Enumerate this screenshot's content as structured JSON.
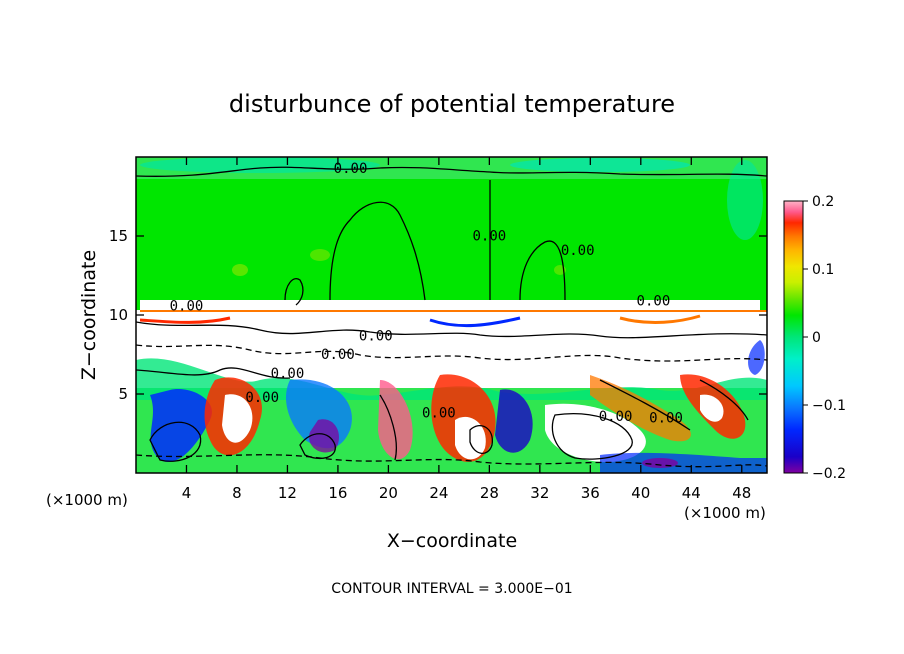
{
  "chart_data": {
    "type": "heatmap",
    "title": "disturbunce of potential temperature",
    "xlabel": "X−coordinate",
    "ylabel": "Z−coordinate",
    "x_unit": "(×1000 m)",
    "x_unit_right": "(×1000 m)",
    "xlim": [
      0,
      50
    ],
    "ylim": [
      0,
      20
    ],
    "xticks": [
      4,
      8,
      12,
      16,
      20,
      24,
      28,
      32,
      36,
      40,
      44,
      48
    ],
    "yticks": [
      5,
      10,
      15
    ],
    "colorbar": {
      "range": [
        -0.2,
        0.2
      ],
      "tick_values": [
        0.2,
        0.1,
        0,
        -0.1,
        -0.2
      ],
      "tick_labels": [
        "0.2",
        "0.1",
        "0",
        "−0.1",
        "−0.2"
      ],
      "colors": [
        "#8000a0",
        "#1a00c8",
        "#0028ff",
        "#0a78ff",
        "#00c8ff",
        "#00f0c8",
        "#00e678",
        "#00e600",
        "#64e600",
        "#c8f000",
        "#f0e600",
        "#ffb400",
        "#ff7800",
        "#ff2800",
        "#ff5a8c",
        "#ffb4c8"
      ]
    },
    "contour_interval_label": "CONTOUR INTERVAL = 3.000E−01",
    "contour_labels": [
      {
        "x": 17,
        "z": 19.0,
        "text": "0.00"
      },
      {
        "x": 35,
        "z": 13.8,
        "text": "0.00"
      },
      {
        "x": 28,
        "z": 14.7,
        "text": "0.00"
      },
      {
        "x": 4,
        "z": 10.3,
        "text": "0.00"
      },
      {
        "x": 41,
        "z": 10.6,
        "text": "0.00"
      },
      {
        "x": 19,
        "z": 8.4,
        "text": "0.00"
      },
      {
        "x": 16,
        "z": 7.2,
        "text": "0.00"
      },
      {
        "x": 12,
        "z": 6.0,
        "text": "0.00"
      },
      {
        "x": 10,
        "z": 4.5,
        "text": "0.00"
      },
      {
        "x": 24,
        "z": 3.5,
        "text": "0.00"
      },
      {
        "x": 38,
        "z": 3.3,
        "text": "0.00"
      },
      {
        "x": 42,
        "z": 3.2,
        "text": "0.00"
      }
    ]
  }
}
